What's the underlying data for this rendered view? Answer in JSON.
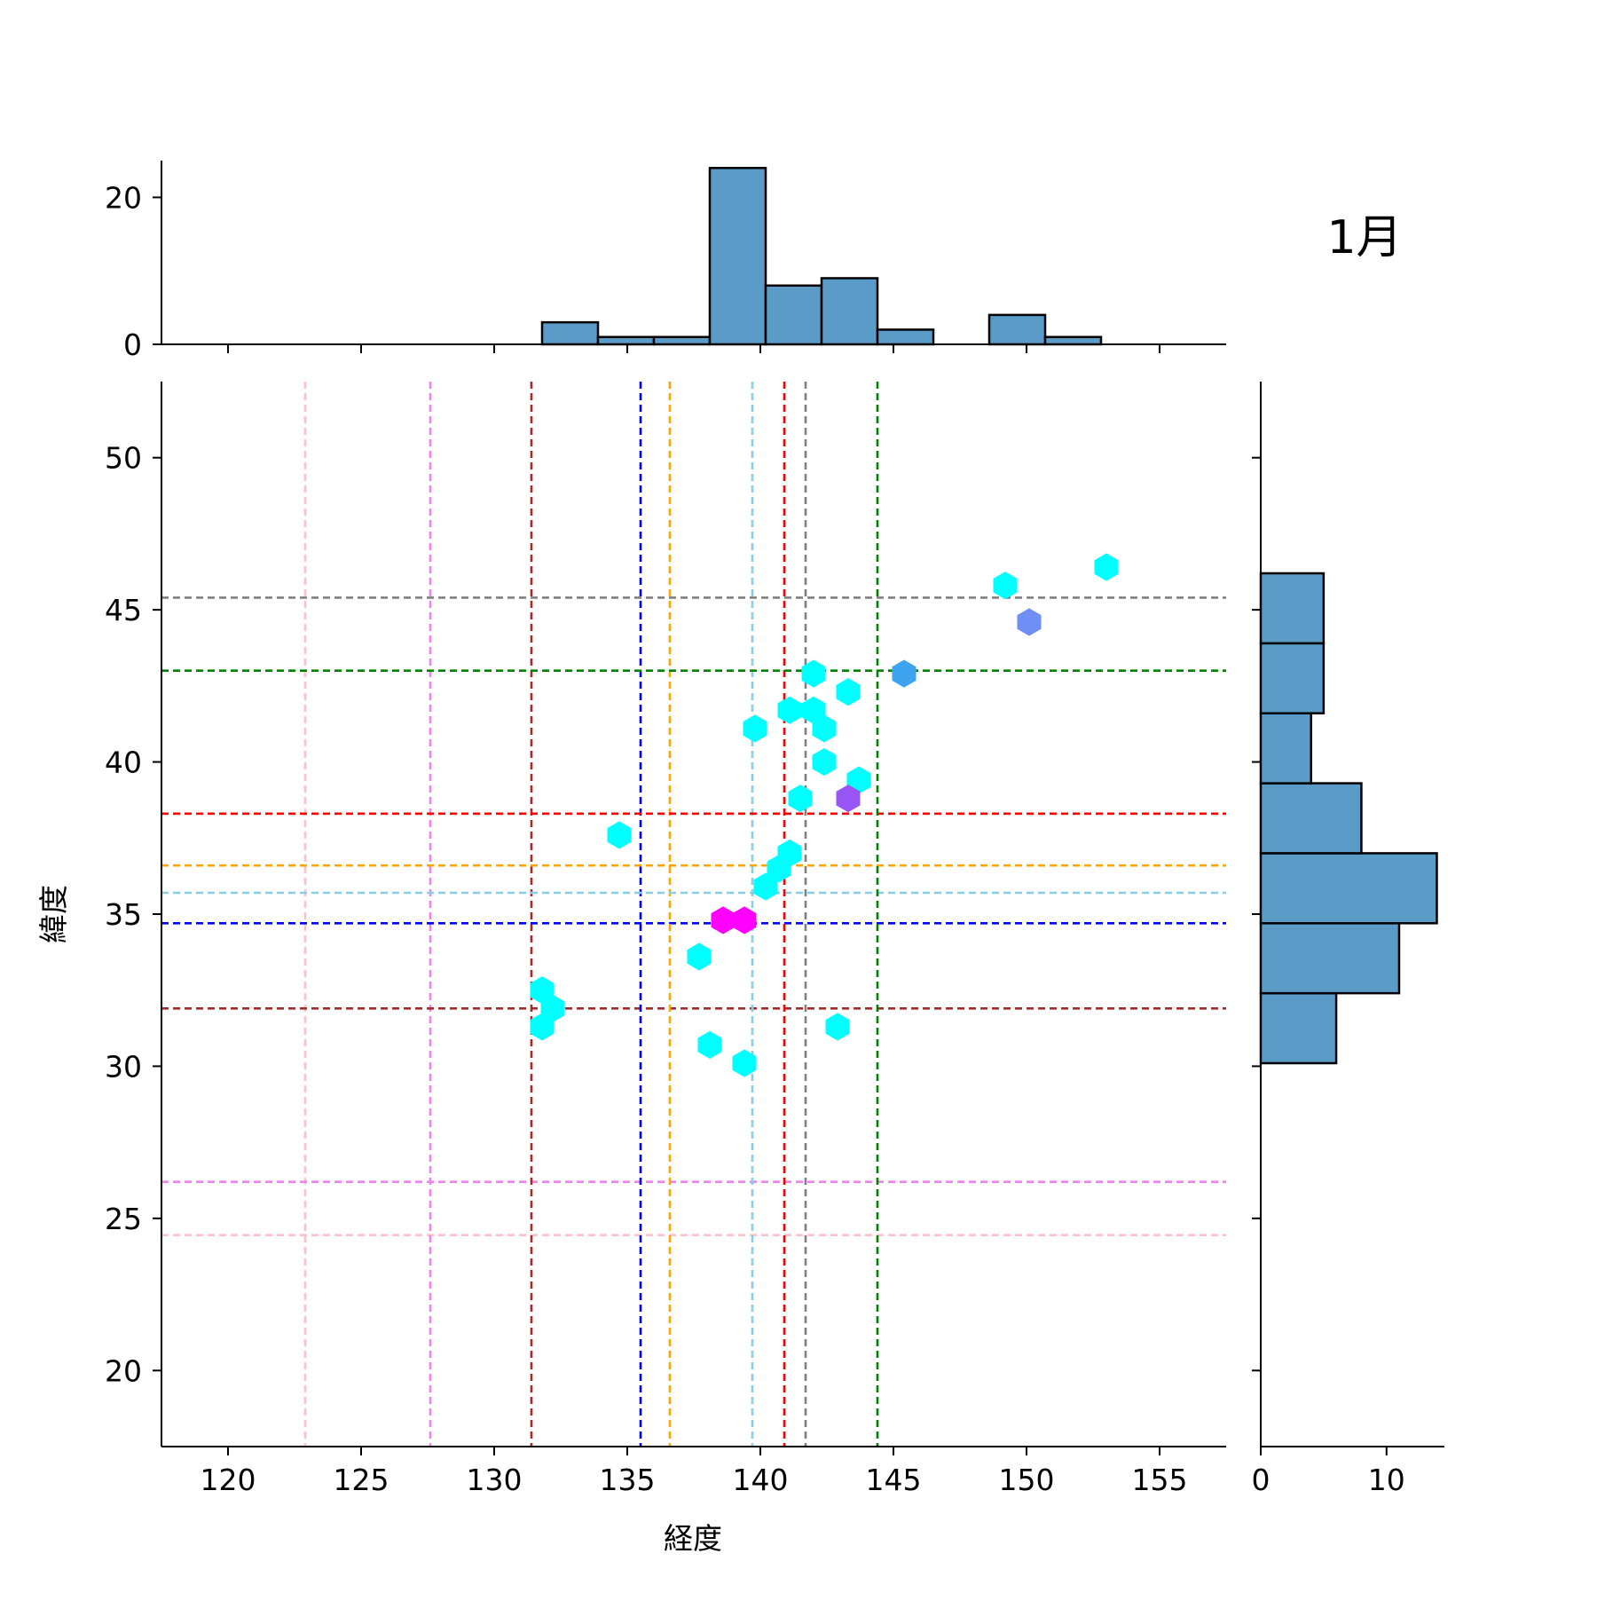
{
  "annotation": "1月",
  "chart_data": {
    "type": "hexbin-jointplot",
    "xlabel": "経度",
    "ylabel": "緯度",
    "xlim": [
      117.5,
      157.5
    ],
    "ylim": [
      17.5,
      52.5
    ],
    "xticks": [
      120,
      125,
      130,
      135,
      140,
      145,
      150,
      155
    ],
    "yticks": [
      20,
      25,
      30,
      35,
      40,
      45,
      50
    ],
    "grid": false,
    "hexbins": [
      {
        "x": 131.8,
        "y": 32.5,
        "color": "#00ffff"
      },
      {
        "x": 132.2,
        "y": 31.9,
        "color": "#00ffff"
      },
      {
        "x": 131.8,
        "y": 31.3,
        "color": "#00ffff"
      },
      {
        "x": 134.7,
        "y": 37.6,
        "color": "#00ffff"
      },
      {
        "x": 137.7,
        "y": 33.6,
        "color": "#00ffff"
      },
      {
        "x": 138.1,
        "y": 30.7,
        "color": "#00ffff"
      },
      {
        "x": 139.4,
        "y": 30.1,
        "color": "#00ffff"
      },
      {
        "x": 138.6,
        "y": 34.8,
        "color": "#ff00ff"
      },
      {
        "x": 139.4,
        "y": 34.8,
        "color": "#ff00ff"
      },
      {
        "x": 140.2,
        "y": 35.9,
        "color": "#00ffff"
      },
      {
        "x": 140.7,
        "y": 36.5,
        "color": "#00ffff"
      },
      {
        "x": 141.1,
        "y": 37.0,
        "color": "#00ffff"
      },
      {
        "x": 141.5,
        "y": 38.8,
        "color": "#00ffff"
      },
      {
        "x": 139.8,
        "y": 41.1,
        "color": "#00ffff"
      },
      {
        "x": 141.1,
        "y": 41.7,
        "color": "#00ffff"
      },
      {
        "x": 142.0,
        "y": 41.7,
        "color": "#00ffff"
      },
      {
        "x": 142.4,
        "y": 41.1,
        "color": "#00ffff"
      },
      {
        "x": 142.4,
        "y": 40.0,
        "color": "#00ffff"
      },
      {
        "x": 143.7,
        "y": 39.4,
        "color": "#00ffff"
      },
      {
        "x": 143.3,
        "y": 38.8,
        "color": "#9a55f5"
      },
      {
        "x": 142.0,
        "y": 42.9,
        "color": "#00ffff"
      },
      {
        "x": 143.3,
        "y": 42.3,
        "color": "#00ffff"
      },
      {
        "x": 145.4,
        "y": 42.9,
        "color": "#3fa4f0"
      },
      {
        "x": 142.9,
        "y": 31.3,
        "color": "#00ffff"
      },
      {
        "x": 149.2,
        "y": 45.8,
        "color": "#00ffff"
      },
      {
        "x": 150.1,
        "y": 44.6,
        "color": "#6f8ff6"
      },
      {
        "x": 153.0,
        "y": 46.4,
        "color": "#00ffff"
      }
    ],
    "reference_lines": [
      {
        "lon": 122.9,
        "lat": 24.45,
        "color": "pink"
      },
      {
        "lon": 127.6,
        "lat": 26.2,
        "color": "violet"
      },
      {
        "lon": 131.4,
        "lat": 31.9,
        "color": "brown"
      },
      {
        "lon": 135.5,
        "lat": 34.7,
        "color": "blue"
      },
      {
        "lon": 136.6,
        "lat": 36.6,
        "color": "orange"
      },
      {
        "lon": 139.7,
        "lat": 35.7,
        "color": "skyblue"
      },
      {
        "lon": 140.9,
        "lat": 38.3,
        "color": "red"
      },
      {
        "lon": 141.7,
        "lat": 45.4,
        "color": "gray"
      },
      {
        "lon": 144.4,
        "lat": 43.0,
        "color": "green"
      }
    ],
    "marginal_x": {
      "type": "bar",
      "ylim": [
        0,
        25
      ],
      "yticks": [
        0,
        20
      ],
      "bin_edges": [
        131.8,
        133.9,
        136.0,
        138.1,
        140.2,
        142.3,
        144.4,
        146.5,
        148.6,
        150.7,
        152.8
      ],
      "counts": [
        3,
        1,
        1,
        24,
        8,
        9,
        2,
        0,
        4,
        1
      ],
      "color": "#5b9bc8"
    },
    "marginal_y": {
      "type": "bar",
      "xlim": [
        0,
        14.6
      ],
      "xticks": [
        0,
        10
      ],
      "bin_edges": [
        30.1,
        32.4,
        34.7,
        37.0,
        39.3,
        41.6,
        43.9,
        46.2
      ],
      "counts": [
        6,
        11,
        14,
        8,
        4,
        5,
        5
      ],
      "color": "#5b9bc8"
    }
  }
}
